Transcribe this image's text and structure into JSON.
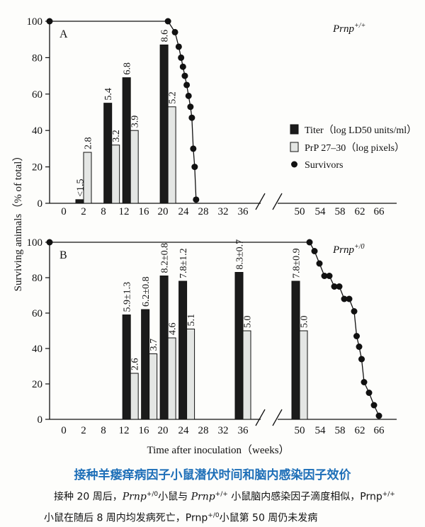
{
  "chart_data": [
    {
      "type": "bar",
      "panel_label": "A",
      "genotype_label": "Prnp+/+",
      "x_ticks": [
        0,
        2,
        8,
        12,
        16,
        20,
        24,
        28,
        32,
        36,
        50,
        54,
        58,
        62,
        66
      ],
      "ylim": [
        0,
        100
      ],
      "y_ticks": [
        0,
        20,
        40,
        60,
        80,
        100
      ],
      "series": [
        {
          "name": "Titer（log LD50 units/ml）",
          "x": [
            2,
            8,
            12,
            20
          ],
          "values": [
            2,
            55,
            69,
            87
          ],
          "labels": [
            "<1.5",
            "5.4",
            "6.8",
            "8.6"
          ]
        },
        {
          "name": "PrP 27–30（log pixels）",
          "x": [
            2,
            8,
            12,
            20
          ],
          "values": [
            28,
            32,
            40,
            53
          ],
          "labels": [
            "2.8",
            "3.2",
            "3.9",
            "5.2"
          ]
        }
      ],
      "survivors": {
        "name": "Survivors",
        "x": [
          20,
          21.5,
          22.3,
          22.8,
          23.2,
          23.6,
          24,
          24.4,
          24.8,
          25.1,
          25.4,
          25.7,
          26
        ],
        "y": [
          100,
          94,
          86,
          80,
          75,
          70,
          65,
          59,
          53,
          47,
          30,
          20,
          2
        ]
      },
      "legend": [
        "Titer（log LD50 units/ml）",
        "PrP 27–30（log pixels）",
        "Survivors"
      ]
    },
    {
      "type": "bar",
      "panel_label": "B",
      "genotype_label": "Prnp+/0",
      "x_ticks": [
        0,
        2,
        8,
        12,
        16,
        20,
        24,
        28,
        32,
        36,
        50,
        54,
        58,
        62,
        66
      ],
      "ylim": [
        0,
        100
      ],
      "y_ticks": [
        0,
        20,
        40,
        60,
        80,
        100
      ],
      "series": [
        {
          "name": "Titer（log LD50 units/ml）",
          "x": [
            12,
            16,
            20,
            24,
            36,
            50
          ],
          "values": [
            59,
            62,
            81,
            78,
            83,
            78
          ],
          "labels": [
            "5.9±1.3",
            "6.2±0.8",
            "8.2±0.8",
            "7.8±1.2",
            "8.3±0.7",
            "7.8±0.9"
          ]
        },
        {
          "name": "PrP 27–30（log pixels）",
          "x": [
            12,
            16,
            20,
            24,
            36,
            50
          ],
          "values": [
            26,
            37,
            46,
            51,
            50,
            50
          ],
          "labels": [
            "2.6",
            "3.7",
            "4.6",
            "5.1",
            "5.0",
            "5.0"
          ]
        }
      ],
      "survivors": {
        "name": "Survivors",
        "x": [
          52,
          53,
          54,
          55,
          56,
          57,
          58,
          59,
          60,
          61,
          61.5,
          62,
          62.5,
          63,
          64,
          65,
          66
        ],
        "y": [
          100,
          95,
          88,
          81,
          81,
          75,
          75,
          68,
          68,
          61,
          47,
          41,
          34,
          21,
          15,
          8,
          2
        ]
      },
      "xlabel": "Time after inoculation（weeks）"
    }
  ],
  "ylabel": "Surviving animals（% of total）",
  "caption": {
    "title": "接种羊瘘痒病因子小鼠潜伏时间和脑内感染因子效价",
    "line1_a": "接种 20 周后，",
    "line1_prnp1": "Prnp",
    "line1_sup1": "+/0",
    "line1_b": "小鼠与",
    "line1_prnp2": "Prnp",
    "line1_sup2": "+/+",
    "line1_c": "小鼠脑内感染因子滴度相似，Prnp",
    "line1_sup3": "+/+",
    "line2_a": "小鼠在随后 8 周内均发病死亡，Prnp",
    "line2_sup1": "+/0",
    "line2_b": "小鼠第 50 周仍未发病"
  }
}
